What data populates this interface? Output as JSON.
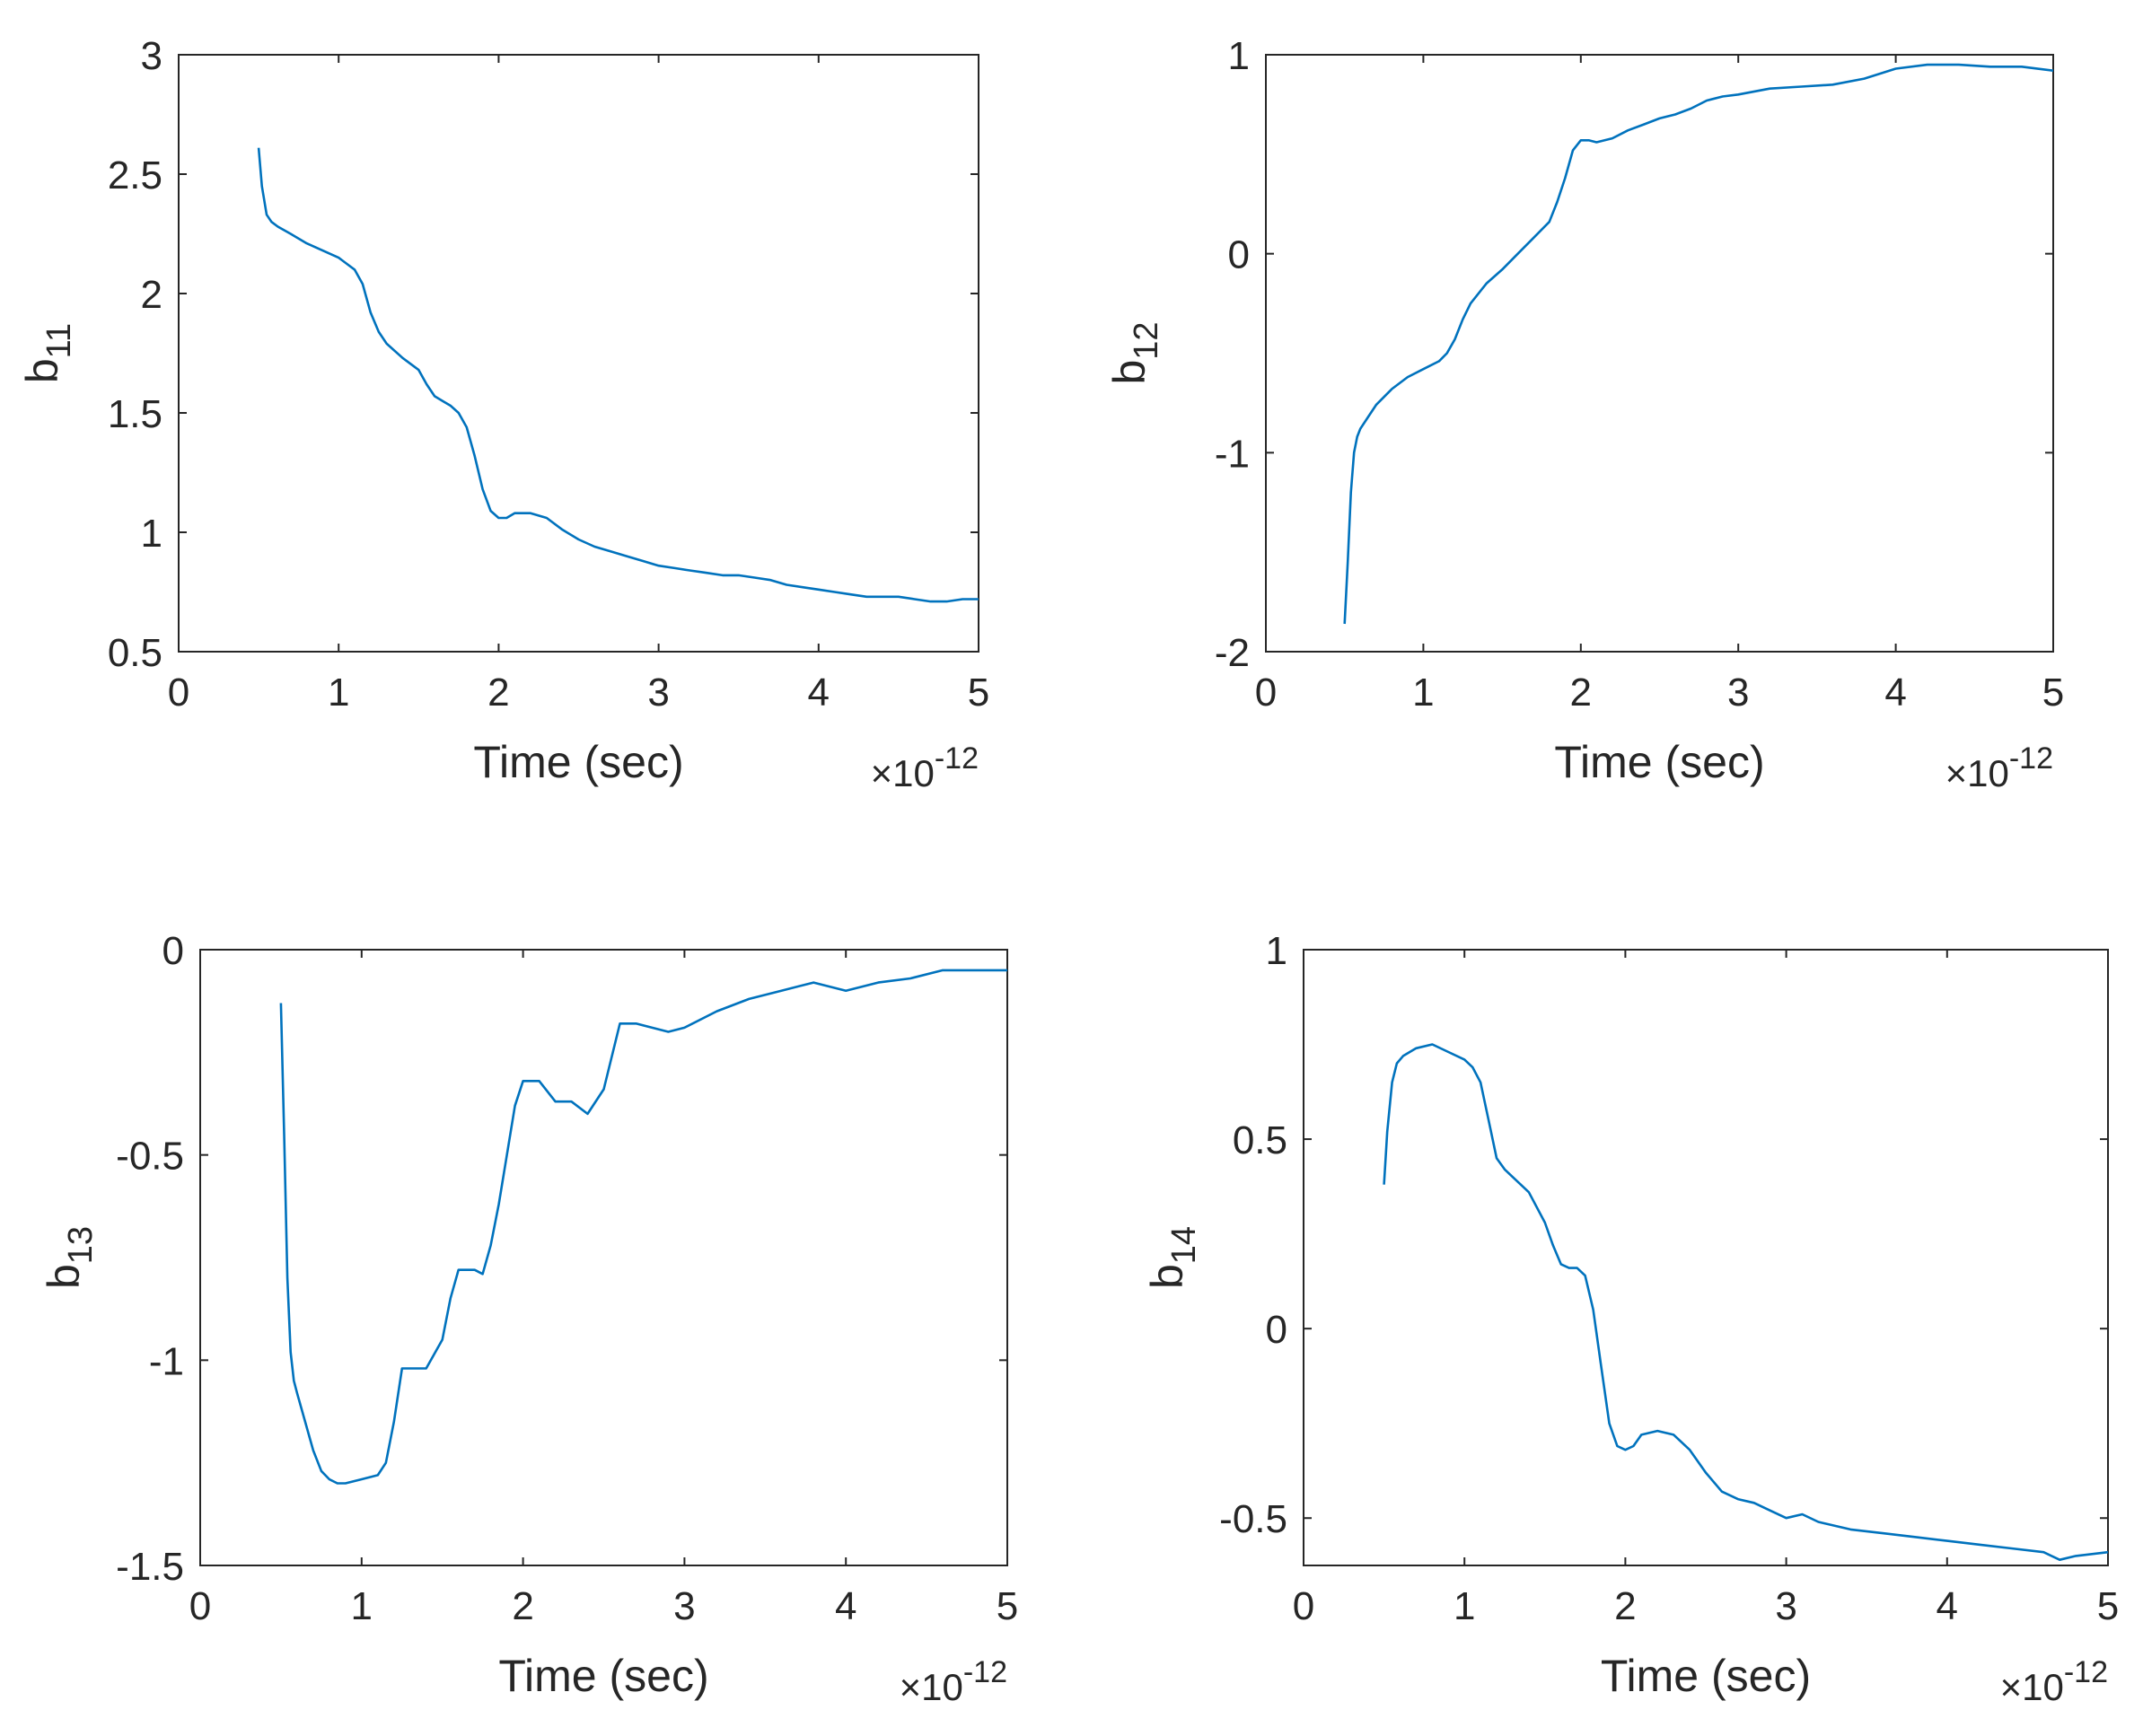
{
  "figure": {
    "line_color": "#0072BD"
  },
  "chart_data": [
    {
      "type": "line",
      "name": "b11",
      "ylabel_main": "b",
      "ylabel_sub": "11",
      "xlabel": "Time (sec)",
      "x_exponent_prefix": "×10",
      "x_exponent": "-12",
      "xlim": [
        0,
        5
      ],
      "ylim": [
        0.5,
        3
      ],
      "xticks": [
        0,
        1,
        2,
        3,
        4,
        5
      ],
      "xtick_labels": [
        "0",
        "1",
        "2",
        "3",
        "4",
        "5"
      ],
      "yticks": [
        0.5,
        1,
        1.5,
        2,
        2.5,
        3
      ],
      "ytick_labels": [
        "0.5",
        "1",
        "1.5",
        "2",
        "2.5",
        "3"
      ],
      "x_unit": "×10^-12 s",
      "series": [
        {
          "name": "b11",
          "x": [
            0.5,
            0.52,
            0.55,
            0.58,
            0.62,
            0.7,
            0.8,
            0.9,
            1.0,
            1.1,
            1.15,
            1.2,
            1.25,
            1.3,
            1.4,
            1.5,
            1.55,
            1.6,
            1.65,
            1.7,
            1.75,
            1.8,
            1.85,
            1.9,
            1.95,
            2.0,
            2.05,
            2.1,
            2.2,
            2.3,
            2.4,
            2.5,
            2.6,
            2.7,
            2.8,
            2.9,
            3.0,
            3.1,
            3.2,
            3.3,
            3.4,
            3.5,
            3.6,
            3.7,
            3.8,
            3.9,
            4.0,
            4.1,
            4.2,
            4.3,
            4.4,
            4.5,
            4.6,
            4.7,
            4.8,
            4.9,
            5.0
          ],
          "y": [
            2.61,
            2.45,
            2.33,
            2.3,
            2.28,
            2.25,
            2.21,
            2.18,
            2.15,
            2.1,
            2.04,
            1.92,
            1.84,
            1.79,
            1.73,
            1.68,
            1.62,
            1.57,
            1.55,
            1.53,
            1.5,
            1.44,
            1.32,
            1.18,
            1.09,
            1.06,
            1.06,
            1.08,
            1.08,
            1.06,
            1.01,
            0.97,
            0.94,
            0.92,
            0.9,
            0.88,
            0.86,
            0.85,
            0.84,
            0.83,
            0.82,
            0.82,
            0.81,
            0.8,
            0.78,
            0.77,
            0.76,
            0.75,
            0.74,
            0.73,
            0.73,
            0.73,
            0.72,
            0.71,
            0.71,
            0.72,
            0.72
          ]
        }
      ]
    },
    {
      "type": "line",
      "name": "b12",
      "ylabel_main": "b",
      "ylabel_sub": "12",
      "xlabel": "Time (sec)",
      "x_exponent_prefix": "×10",
      "x_exponent": "-12",
      "xlim": [
        0,
        5
      ],
      "ylim": [
        -2,
        1
      ],
      "xticks": [
        0,
        1,
        2,
        3,
        4,
        5
      ],
      "xtick_labels": [
        "0",
        "1",
        "2",
        "3",
        "4",
        "5"
      ],
      "yticks": [
        -2,
        -1,
        0,
        1
      ],
      "ytick_labels": [
        "-2",
        "-1",
        "0",
        "1"
      ],
      "x_unit": "×10^-12 s",
      "series": [
        {
          "name": "b12",
          "x": [
            0.5,
            0.52,
            0.54,
            0.56,
            0.58,
            0.6,
            0.65,
            0.7,
            0.8,
            0.9,
            1.0,
            1.1,
            1.15,
            1.2,
            1.25,
            1.3,
            1.4,
            1.5,
            1.6,
            1.7,
            1.8,
            1.85,
            1.9,
            1.95,
            2.0,
            2.05,
            2.1,
            2.2,
            2.3,
            2.4,
            2.5,
            2.6,
            2.7,
            2.8,
            2.9,
            3.0,
            3.2,
            3.4,
            3.6,
            3.8,
            4.0,
            4.2,
            4.4,
            4.6,
            4.8,
            5.0
          ],
          "y": [
            -1.86,
            -1.55,
            -1.2,
            -1.0,
            -0.92,
            -0.88,
            -0.82,
            -0.76,
            -0.68,
            -0.62,
            -0.58,
            -0.54,
            -0.5,
            -0.43,
            -0.33,
            -0.25,
            -0.15,
            -0.08,
            0.0,
            0.08,
            0.16,
            0.26,
            0.38,
            0.52,
            0.57,
            0.57,
            0.56,
            0.58,
            0.62,
            0.65,
            0.68,
            0.7,
            0.73,
            0.77,
            0.79,
            0.8,
            0.83,
            0.84,
            0.85,
            0.88,
            0.93,
            0.95,
            0.95,
            0.94,
            0.94,
            0.92
          ]
        }
      ]
    },
    {
      "type": "line",
      "name": "b13",
      "ylabel_main": "b",
      "ylabel_sub": "13",
      "xlabel": "Time (sec)",
      "x_exponent_prefix": "×10",
      "x_exponent": "-12",
      "xlim": [
        0,
        5
      ],
      "ylim": [
        -1.5,
        0
      ],
      "xticks": [
        0,
        1,
        2,
        3,
        4,
        5
      ],
      "xtick_labels": [
        "0",
        "1",
        "2",
        "3",
        "4",
        "5"
      ],
      "yticks": [
        -1.5,
        -1,
        -0.5,
        0
      ],
      "ytick_labels": [
        "-1.5",
        "-1",
        "-0.5",
        "0"
      ],
      "x_unit": "×10^-12 s",
      "series": [
        {
          "name": "b13",
          "x": [
            0.5,
            0.52,
            0.54,
            0.56,
            0.58,
            0.6,
            0.65,
            0.7,
            0.75,
            0.8,
            0.85,
            0.9,
            1.0,
            1.1,
            1.15,
            1.2,
            1.25,
            1.3,
            1.35,
            1.4,
            1.5,
            1.55,
            1.6,
            1.65,
            1.7,
            1.75,
            1.8,
            1.85,
            1.9,
            1.95,
            2.0,
            2.1,
            2.2,
            2.3,
            2.4,
            2.5,
            2.6,
            2.7,
            2.8,
            2.9,
            3.0,
            3.2,
            3.4,
            3.6,
            3.8,
            4.0,
            4.2,
            4.4,
            4.6,
            4.8,
            5.0
          ],
          "y": [
            -0.13,
            -0.45,
            -0.8,
            -0.98,
            -1.05,
            -1.08,
            -1.15,
            -1.22,
            -1.27,
            -1.29,
            -1.3,
            -1.3,
            -1.29,
            -1.28,
            -1.25,
            -1.15,
            -1.02,
            -1.02,
            -1.02,
            -1.02,
            -0.95,
            -0.85,
            -0.78,
            -0.78,
            -0.78,
            -0.79,
            -0.72,
            -0.62,
            -0.5,
            -0.38,
            -0.32,
            -0.32,
            -0.37,
            -0.37,
            -0.4,
            -0.34,
            -0.18,
            -0.18,
            -0.19,
            -0.2,
            -0.19,
            -0.15,
            -0.12,
            -0.1,
            -0.08,
            -0.1,
            -0.08,
            -0.07,
            -0.05,
            -0.05,
            -0.05
          ]
        }
      ]
    },
    {
      "type": "line",
      "name": "b14",
      "ylabel_main": "b",
      "ylabel_sub": "14",
      "xlabel": "Time (sec)",
      "x_exponent_prefix": "×10",
      "x_exponent": "-12",
      "xlim": [
        0,
        5
      ],
      "ylim": [
        -0.625,
        1
      ],
      "xticks": [
        0,
        1,
        2,
        3,
        4,
        5
      ],
      "xtick_labels": [
        "0",
        "1",
        "2",
        "3",
        "4",
        "5"
      ],
      "yticks": [
        -0.5,
        0,
        0.5,
        1
      ],
      "ytick_labels": [
        "-0.5",
        "0",
        "0.5",
        "1"
      ],
      "x_unit": "×10^-12 s",
      "series": [
        {
          "name": "b14",
          "x": [
            0.5,
            0.52,
            0.55,
            0.58,
            0.62,
            0.7,
            0.8,
            0.9,
            1.0,
            1.05,
            1.1,
            1.15,
            1.2,
            1.25,
            1.3,
            1.35,
            1.4,
            1.5,
            1.55,
            1.6,
            1.65,
            1.7,
            1.75,
            1.8,
            1.85,
            1.9,
            1.95,
            2.0,
            2.05,
            2.1,
            2.2,
            2.3,
            2.4,
            2.5,
            2.6,
            2.7,
            2.8,
            2.9,
            3.0,
            3.1,
            3.2,
            3.4,
            3.6,
            3.8,
            4.0,
            4.2,
            4.4,
            4.6,
            4.7,
            4.8,
            5.0
          ],
          "y": [
            0.38,
            0.52,
            0.65,
            0.7,
            0.72,
            0.74,
            0.75,
            0.73,
            0.71,
            0.69,
            0.65,
            0.55,
            0.45,
            0.42,
            0.4,
            0.38,
            0.36,
            0.28,
            0.22,
            0.17,
            0.16,
            0.16,
            0.14,
            0.05,
            -0.1,
            -0.25,
            -0.31,
            -0.32,
            -0.31,
            -0.28,
            -0.27,
            -0.28,
            -0.32,
            -0.38,
            -0.43,
            -0.45,
            -0.46,
            -0.48,
            -0.5,
            -0.49,
            -0.51,
            -0.53,
            -0.54,
            -0.55,
            -0.56,
            -0.57,
            -0.58,
            -0.59,
            -0.61,
            -0.6,
            -0.59
          ]
        }
      ]
    }
  ]
}
